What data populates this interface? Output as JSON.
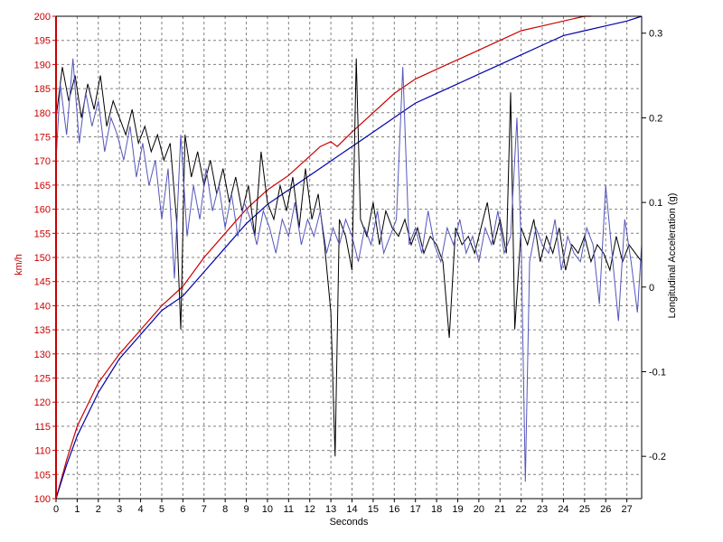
{
  "chart_data": {
    "type": "line",
    "title": "",
    "xlabel": "Seconds",
    "ylabel": "km/h",
    "y2label": "Longitudinal Acceleration (g)",
    "xlim": [
      0,
      27.7
    ],
    "ylim": [
      100,
      200
    ],
    "y2lim": [
      -0.25,
      0.32
    ],
    "x_ticks": [
      "0",
      "1",
      "2",
      "3",
      "4",
      "5",
      "6",
      "7",
      "8",
      "9",
      "10",
      "11",
      "12",
      "13",
      "14",
      "15",
      "16",
      "17",
      "18",
      "19",
      "20",
      "21",
      "22",
      "23",
      "24",
      "25",
      "26",
      "27"
    ],
    "y_ticks": [
      "100",
      "105",
      "110",
      "115",
      "120",
      "125",
      "130",
      "135",
      "140",
      "145",
      "150",
      "155",
      "160",
      "165",
      "170",
      "175",
      "180",
      "185",
      "190",
      "195",
      "200"
    ],
    "y2_ticks": [
      "-0.2",
      "-0.1",
      "0",
      "0.1",
      "0.2",
      "0.3"
    ],
    "grid": true,
    "colors": {
      "left_axis": "#cc0000",
      "right_axis": "#000000",
      "grid": "#808080"
    },
    "speed_series": [
      {
        "color": "#cc0000",
        "axis": "left",
        "x": [
          0,
          0.5,
          1,
          2,
          3,
          4,
          5,
          6,
          7,
          8,
          9,
          10,
          11,
          12,
          12.5,
          13,
          13.3,
          14,
          15,
          16,
          17,
          18,
          19,
          20,
          21,
          22,
          23,
          24,
          25,
          25.3
        ],
        "y": [
          100,
          108,
          115,
          124,
          130,
          135,
          140,
          144,
          150,
          155,
          160,
          164,
          167,
          171,
          173,
          174,
          173,
          176,
          180,
          184,
          187,
          189,
          191,
          193,
          195,
          197,
          198,
          199,
          200,
          200
        ]
      },
      {
        "color": "#0000aa",
        "axis": "left",
        "x": [
          0,
          0.5,
          1,
          2,
          3,
          4,
          5,
          6,
          7,
          8,
          9,
          10,
          11,
          12,
          13,
          14,
          15,
          16,
          17,
          18,
          19,
          20,
          21,
          22,
          23,
          24,
          25,
          26,
          27,
          27.7
        ],
        "y": [
          100,
          107,
          113,
          122,
          129,
          134,
          139,
          142,
          147,
          152,
          157,
          161,
          164,
          167,
          170,
          173,
          176,
          179,
          182,
          184,
          186,
          188,
          190,
          192,
          194,
          196,
          197,
          198,
          199,
          200
        ]
      }
    ],
    "accel_series": [
      {
        "color": "#000000",
        "axis": "right",
        "x": [
          0,
          0.3,
          0.6,
          0.9,
          1.2,
          1.5,
          1.8,
          2.1,
          2.4,
          2.7,
          3.0,
          3.3,
          3.6,
          3.9,
          4.2,
          4.5,
          4.8,
          5.1,
          5.4,
          5.7,
          5.9,
          6.1,
          6.4,
          6.7,
          7.0,
          7.3,
          7.6,
          7.9,
          8.2,
          8.5,
          8.8,
          9.1,
          9.4,
          9.7,
          10.0,
          10.3,
          10.6,
          10.9,
          11.2,
          11.5,
          11.8,
          12.1,
          12.4,
          12.7,
          13.0,
          13.2,
          13.4,
          13.7,
          14.0,
          14.2,
          14.4,
          14.7,
          15.0,
          15.3,
          15.6,
          15.9,
          16.2,
          16.5,
          16.8,
          17.1,
          17.4,
          17.7,
          18.0,
          18.3,
          18.6,
          18.9,
          19.2,
          19.5,
          19.8,
          20.1,
          20.4,
          20.7,
          21.0,
          21.3,
          21.5,
          21.7,
          22.0,
          22.3,
          22.6,
          22.9,
          23.2,
          23.5,
          23.8,
          24.1,
          24.4,
          24.7,
          25.0,
          25.3,
          25.6,
          25.9,
          26.2,
          26.5,
          26.8,
          27.1,
          27.4,
          27.7
        ],
        "y": [
          0.2,
          0.26,
          0.22,
          0.25,
          0.2,
          0.24,
          0.21,
          0.25,
          0.19,
          0.22,
          0.2,
          0.18,
          0.21,
          0.17,
          0.19,
          0.16,
          0.18,
          0.15,
          0.17,
          0.08,
          -0.05,
          0.18,
          0.13,
          0.16,
          0.12,
          0.15,
          0.11,
          0.14,
          0.1,
          0.13,
          0.09,
          0.12,
          0.06,
          0.16,
          0.1,
          0.08,
          0.12,
          0.09,
          0.13,
          0.07,
          0.14,
          0.08,
          0.11,
          0.05,
          -0.03,
          -0.2,
          0.08,
          0.06,
          0.02,
          0.27,
          0.08,
          0.06,
          0.1,
          0.05,
          0.09,
          0.07,
          0.06,
          0.08,
          0.05,
          0.07,
          0.04,
          0.06,
          0.05,
          0.03,
          -0.06,
          0.07,
          0.05,
          0.06,
          0.04,
          0.07,
          0.1,
          0.05,
          0.08,
          0.04,
          0.23,
          -0.05,
          0.07,
          0.05,
          0.08,
          0.03,
          0.06,
          0.04,
          0.07,
          0.02,
          0.05,
          0.04,
          0.06,
          0.03,
          0.05,
          0.04,
          0.02,
          0.06,
          0.03,
          0.05,
          0.04,
          0.03
        ]
      },
      {
        "color": "#5555bb",
        "axis": "right",
        "x": [
          0,
          0.2,
          0.5,
          0.8,
          1.1,
          1.4,
          1.7,
          2.0,
          2.3,
          2.6,
          2.9,
          3.2,
          3.5,
          3.8,
          4.1,
          4.4,
          4.7,
          5.0,
          5.3,
          5.6,
          5.9,
          6.2,
          6.5,
          6.8,
          7.1,
          7.4,
          7.7,
          8.0,
          8.3,
          8.6,
          8.9,
          9.2,
          9.5,
          9.8,
          10.1,
          10.4,
          10.7,
          11.0,
          11.3,
          11.6,
          11.9,
          12.2,
          12.5,
          12.8,
          13.1,
          13.4,
          13.7,
          14.0,
          14.3,
          14.6,
          14.9,
          15.2,
          15.5,
          15.8,
          16.1,
          16.4,
          16.7,
          17.0,
          17.3,
          17.6,
          17.9,
          18.2,
          18.5,
          18.8,
          19.1,
          19.4,
          19.7,
          20.0,
          20.3,
          20.6,
          20.9,
          21.2,
          21.5,
          21.8,
          22.0,
          22.2,
          22.4,
          22.7,
          23.0,
          23.3,
          23.6,
          23.9,
          24.2,
          24.5,
          24.8,
          25.1,
          25.4,
          25.7,
          26.0,
          26.3,
          26.6,
          26.9,
          27.2,
          27.5,
          27.7
        ],
        "y": [
          0.15,
          0.24,
          0.18,
          0.27,
          0.17,
          0.23,
          0.19,
          0.22,
          0.16,
          0.2,
          0.18,
          0.15,
          0.19,
          0.13,
          0.17,
          0.12,
          0.15,
          0.08,
          0.14,
          0.01,
          0.18,
          0.06,
          0.12,
          0.08,
          0.14,
          0.09,
          0.12,
          0.07,
          0.11,
          0.06,
          0.1,
          0.08,
          0.05,
          0.09,
          0.07,
          0.04,
          0.08,
          0.06,
          0.1,
          0.05,
          0.08,
          0.06,
          0.09,
          0.04,
          0.07,
          0.05,
          0.08,
          0.06,
          0.03,
          0.07,
          0.05,
          0.09,
          0.04,
          0.06,
          0.08,
          0.26,
          0.05,
          0.07,
          0.04,
          0.09,
          0.05,
          0.03,
          0.07,
          0.05,
          0.08,
          0.04,
          0.06,
          0.03,
          0.07,
          0.05,
          0.09,
          0.04,
          0.06,
          0.2,
          0.05,
          -0.23,
          0.03,
          0.07,
          0.05,
          0.04,
          0.08,
          0.02,
          0.06,
          0.04,
          0.03,
          0.07,
          0.05,
          -0.02,
          0.12,
          0.04,
          -0.04,
          0.08,
          0.03,
          -0.03,
          0.05
        ]
      }
    ]
  }
}
